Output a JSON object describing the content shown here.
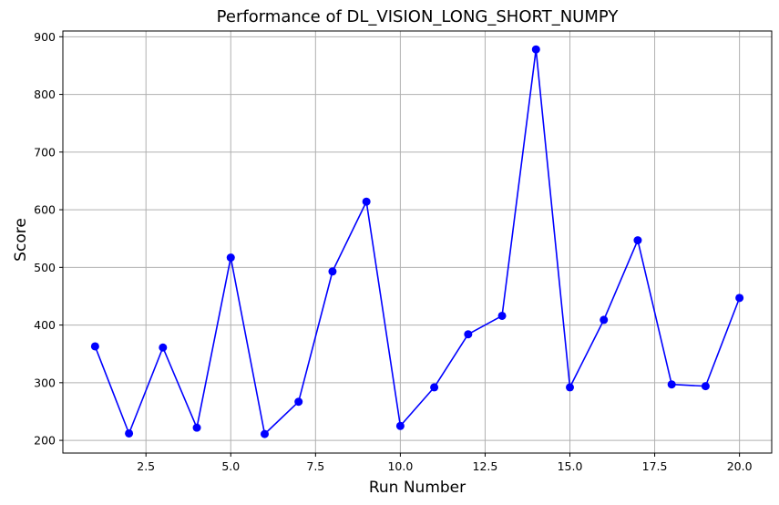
{
  "chart_data": {
    "type": "line",
    "title": "Performance of DL_VISION_LONG_SHORT_NUMPY",
    "xlabel": "Run Number",
    "ylabel": "Score",
    "xlim": [
      0.05,
      20.95
    ],
    "ylim": [
      178,
      910
    ],
    "x_ticks": [
      2.5,
      5.0,
      7.5,
      10.0,
      12.5,
      15.0,
      17.5,
      20.0
    ],
    "x_tick_labels": [
      "2.5",
      "5.0",
      "7.5",
      "10.0",
      "12.5",
      "15.0",
      "17.5",
      "20.0"
    ],
    "y_ticks": [
      200,
      300,
      400,
      500,
      600,
      700,
      800,
      900
    ],
    "y_tick_labels": [
      "200",
      "300",
      "400",
      "500",
      "600",
      "700",
      "800",
      "900"
    ],
    "grid": true,
    "series": [
      {
        "color": "#0000ff",
        "marker": "circle",
        "x": [
          1,
          2,
          3,
          4,
          5,
          6,
          7,
          8,
          9,
          10,
          11,
          12,
          13,
          14,
          15,
          16,
          17,
          18,
          19,
          20
        ],
        "y": [
          363,
          212,
          361,
          222,
          517,
          211,
          267,
          493,
          614,
          225,
          292,
          384,
          416,
          878,
          292,
          409,
          547,
          297,
          294,
          447
        ]
      }
    ]
  }
}
